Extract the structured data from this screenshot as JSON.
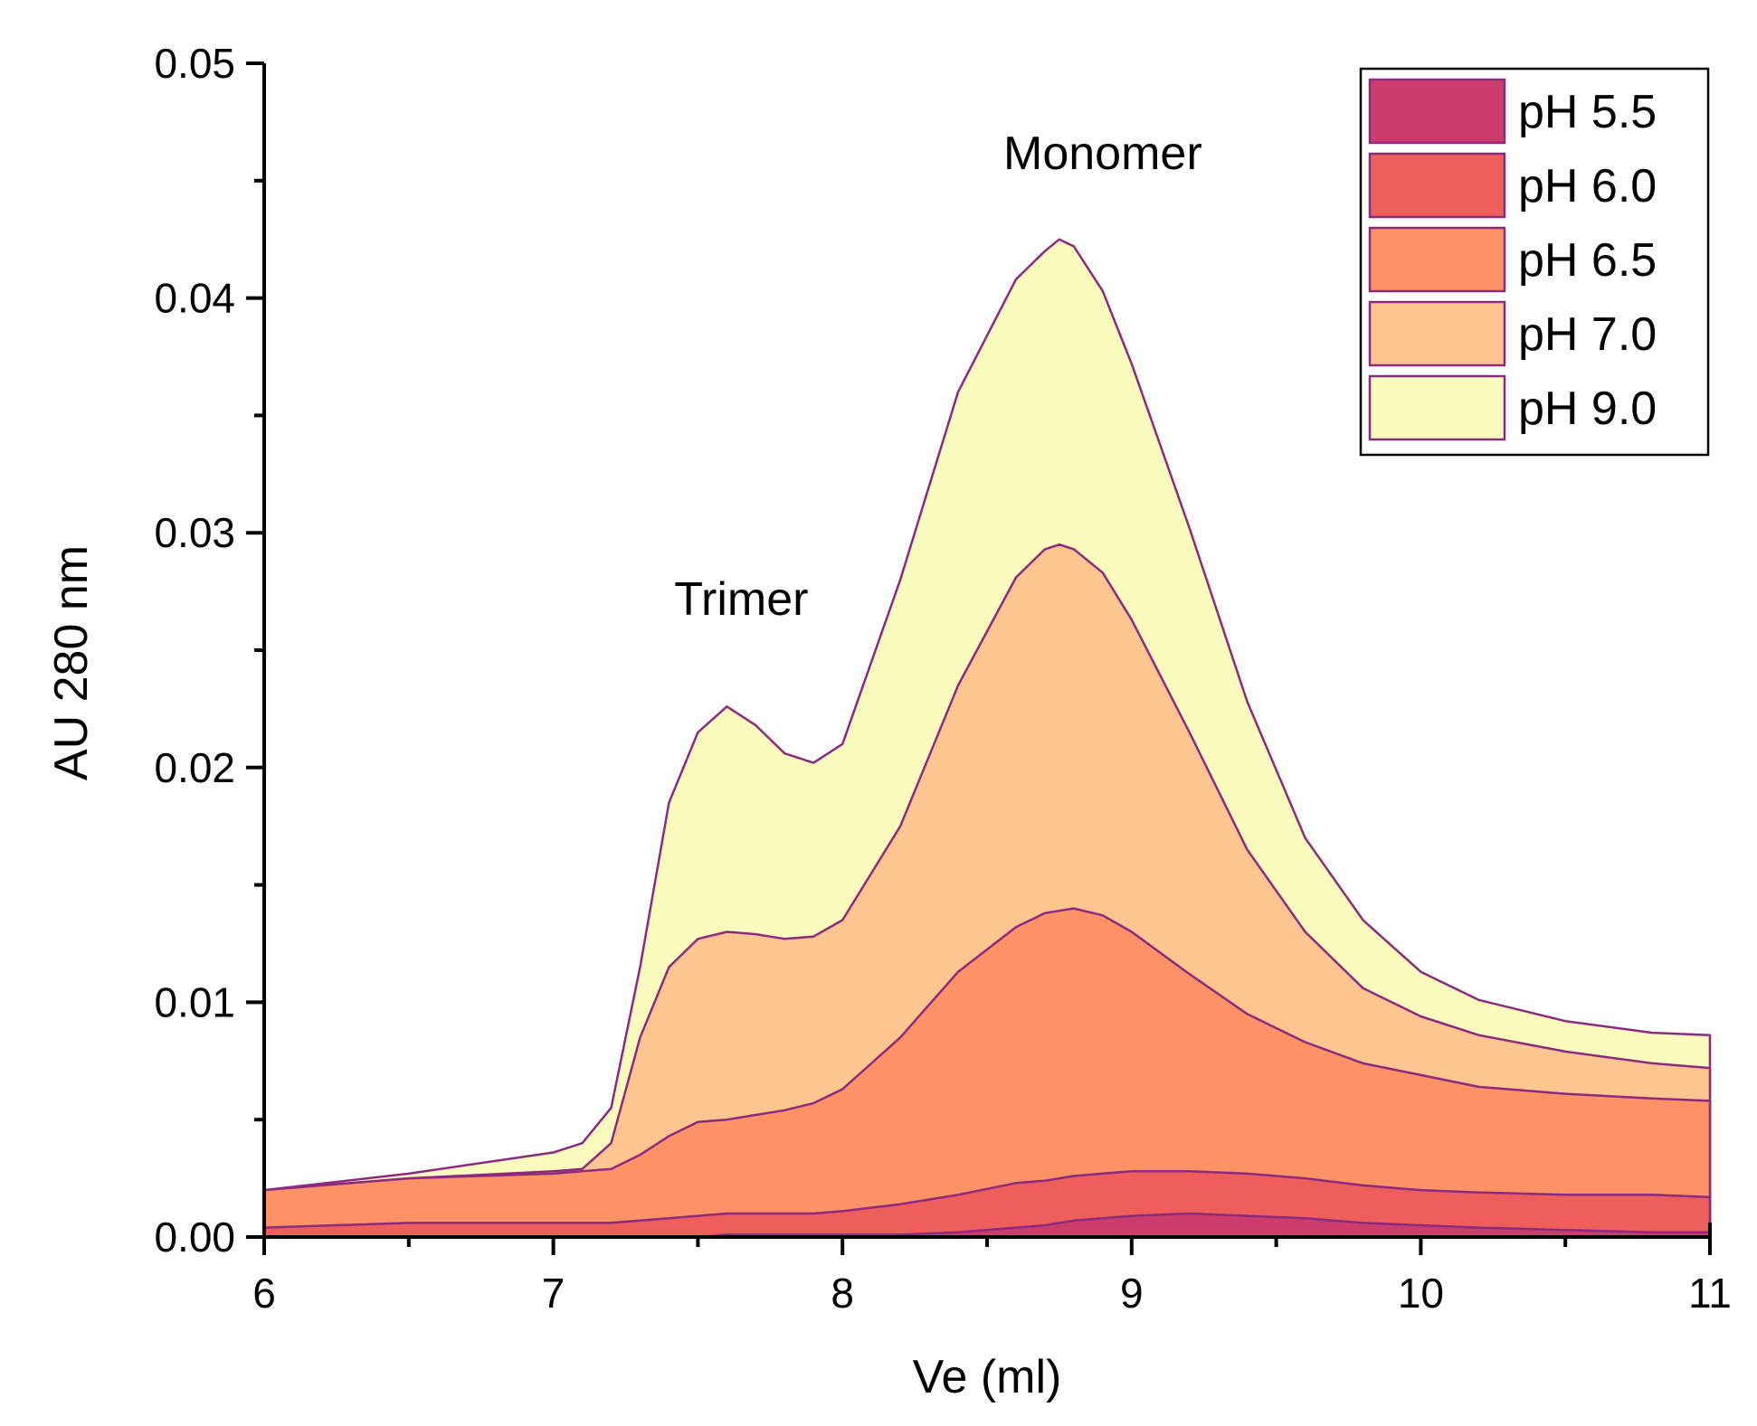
{
  "chart_data": {
    "type": "area",
    "title": "",
    "xlabel": "Ve (ml)",
    "ylabel": "AU 280 nm",
    "xlim": [
      6,
      11
    ],
    "ylim": [
      0,
      0.05
    ],
    "x_ticks": [
      "6",
      "7",
      "8",
      "9",
      "10",
      "11"
    ],
    "y_ticks": [
      "0.00",
      "0.01",
      "0.02",
      "0.03",
      "0.04",
      "0.05"
    ],
    "grid": false,
    "legend_position": "top-right",
    "annotations": [
      {
        "text": "Trimer",
        "x": 7.65,
        "y": 0.0265
      },
      {
        "text": "Monomer",
        "x": 8.9,
        "y": 0.0455
      }
    ],
    "x": [
      6.0,
      6.5,
      7.0,
      7.1,
      7.2,
      7.3,
      7.4,
      7.5,
      7.6,
      7.7,
      7.8,
      7.9,
      8.0,
      8.2,
      8.4,
      8.6,
      8.7,
      8.75,
      8.8,
      8.9,
      9.0,
      9.2,
      9.4,
      9.6,
      9.8,
      10.0,
      10.2,
      10.5,
      10.8,
      11.0
    ],
    "series": [
      {
        "name": "pH 5.5",
        "color": "#cc3d6b",
        "values": [
          0.0,
          0.0,
          0.0,
          0.0,
          0.0,
          0.0,
          0.0,
          0.0,
          0.0001,
          0.0001,
          0.0001,
          0.0001,
          0.0001,
          0.0001,
          0.0002,
          0.0004,
          0.0005,
          0.0006,
          0.0007,
          0.0008,
          0.0009,
          0.001,
          0.0009,
          0.0008,
          0.0006,
          0.0005,
          0.0004,
          0.0003,
          0.0002,
          0.0002
        ]
      },
      {
        "name": "pH 6.0",
        "color": "#ee5f5b",
        "values": [
          0.0004,
          0.0006,
          0.0006,
          0.0006,
          0.0006,
          0.0007,
          0.0008,
          0.0009,
          0.001,
          0.001,
          0.001,
          0.001,
          0.0011,
          0.0014,
          0.0018,
          0.0023,
          0.0024,
          0.0025,
          0.0026,
          0.0027,
          0.0028,
          0.0028,
          0.0027,
          0.0025,
          0.0022,
          0.002,
          0.0019,
          0.0018,
          0.0018,
          0.0017
        ]
      },
      {
        "name": "pH 6.5",
        "color": "#fc9265",
        "values": [
          0.002,
          0.0025,
          0.0027,
          0.0028,
          0.0029,
          0.0035,
          0.0043,
          0.0049,
          0.005,
          0.0052,
          0.0054,
          0.0057,
          0.0063,
          0.0085,
          0.0113,
          0.0132,
          0.0138,
          0.0139,
          0.014,
          0.0137,
          0.013,
          0.0112,
          0.0095,
          0.0083,
          0.0074,
          0.0069,
          0.0064,
          0.0061,
          0.0059,
          0.0058
        ]
      },
      {
        "name": "pH 7.0",
        "color": "#fdc690",
        "values": [
          0.002,
          0.0025,
          0.0028,
          0.0029,
          0.004,
          0.0085,
          0.0115,
          0.0127,
          0.013,
          0.0129,
          0.0127,
          0.0128,
          0.0135,
          0.0175,
          0.0235,
          0.0281,
          0.0293,
          0.0295,
          0.0293,
          0.0283,
          0.0263,
          0.0215,
          0.0165,
          0.013,
          0.0106,
          0.0094,
          0.0086,
          0.0079,
          0.0074,
          0.0072
        ]
      },
      {
        "name": "pH 9.0",
        "color": "#fafbbd",
        "values": [
          0.002,
          0.0027,
          0.0036,
          0.004,
          0.0055,
          0.0115,
          0.0185,
          0.0215,
          0.0226,
          0.0218,
          0.0206,
          0.0202,
          0.021,
          0.028,
          0.036,
          0.0408,
          0.042,
          0.0425,
          0.0422,
          0.0403,
          0.0372,
          0.0302,
          0.0228,
          0.017,
          0.0135,
          0.0113,
          0.0101,
          0.0092,
          0.0087,
          0.0086
        ]
      }
    ]
  }
}
